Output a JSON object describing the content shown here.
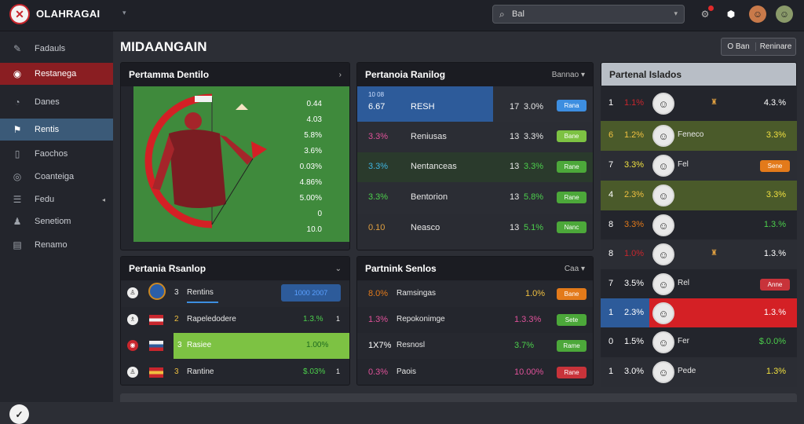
{
  "app": {
    "brand": "OLAHRAGAI",
    "brand_sub": "",
    "page_title": "MIDAANGAIN"
  },
  "search": {
    "text": "Bal",
    "icon": "search-icon"
  },
  "header": {
    "btn1": "O",
    "btn2": "Ban",
    "btn3": "Reninare"
  },
  "sidebar": {
    "items": [
      {
        "label": "Fadauls",
        "icon": "pen-icon"
      },
      {
        "label": "Restanega",
        "icon": "ball-icon"
      },
      {
        "label": "Danes",
        "icon": "chart-icon"
      },
      {
        "label": "Rentis",
        "icon": "flag-icon"
      },
      {
        "label": "Faochos",
        "icon": "doc-icon"
      },
      {
        "label": "Coanteiga",
        "icon": "globe-icon"
      },
      {
        "label": "Fedu",
        "icon": "list-icon"
      },
      {
        "label": "Senetiom",
        "icon": "team-icon"
      },
      {
        "label": "Renamo",
        "icon": "page-icon"
      }
    ]
  },
  "card1": {
    "title": "Pertamma Dentilo",
    "stats": [
      "0.44",
      "4.03",
      "5.8%",
      "3.6%",
      "0.03%",
      "4.86%",
      "5.00%",
      "0",
      "10.0"
    ]
  },
  "card2": {
    "title": "Pertanoia Ranilog",
    "right": "Bannao",
    "rows": [
      {
        "a": "6.67",
        "sub": "10 08",
        "name": "RESH",
        "n": "17",
        "p": "3.0%",
        "btn": "Rana",
        "btncolor": "#3d8ee0"
      },
      {
        "a": "3.3%",
        "name": "Reniusas",
        "n": "13",
        "p": "3.3%",
        "btn": "Bane",
        "btncolor": "#7dc243"
      },
      {
        "a": "3.3%",
        "name": "Nentanceas",
        "n": "13",
        "p": "3.3%",
        "btn": "Rane",
        "btncolor": "#4ca83a"
      },
      {
        "a": "3.3%",
        "name": "Bentorion",
        "n": "13",
        "p": "5.8%",
        "btn": "Rane",
        "btncolor": "#4ca83a"
      },
      {
        "a": "0.10",
        "name": "Neasco",
        "n": "13",
        "p": "5.1%",
        "btn": "Nanc",
        "btncolor": "#4ca83a"
      }
    ]
  },
  "card3": {
    "title": "Partenal Islados",
    "rows": [
      {
        "a": "1",
        "b": "1.1%",
        "c": "",
        "p": "4.3.%"
      },
      {
        "a": "6",
        "b": "1.2%",
        "c": "Feneco",
        "p": "3.3%"
      },
      {
        "a": "7",
        "b": "3.3%",
        "c": "Fel",
        "p": "Sene"
      },
      {
        "a": "4",
        "b": "2.3%",
        "c": "",
        "p": "3.3%"
      },
      {
        "a": "8",
        "b": "3.3%",
        "c": "",
        "p": "1.3.%"
      },
      {
        "a": "8",
        "b": "1.0%",
        "c": "",
        "p": "1.3.%"
      },
      {
        "a": "7",
        "b": "3.5%",
        "c": "Rel",
        "p": "Anne"
      },
      {
        "a": "1",
        "b": "2.3%",
        "c": "",
        "p": "1.3.%"
      },
      {
        "a": "0",
        "b": "1.5%",
        "c": "Fer",
        "p": "$.0.0%"
      },
      {
        "a": "1",
        "b": "3.0%",
        "c": "Pede",
        "p": "1.3%"
      }
    ]
  },
  "card4": {
    "title": "Pertania Rsanlop",
    "rows": [
      {
        "name": "Rentins",
        "value": "1000 2007",
        "extra": ""
      },
      {
        "name": "Rapeledodere",
        "value": "1.3.%",
        "extra": "1"
      },
      {
        "name": "Rasiee",
        "value": "1.00%",
        "extra": ""
      },
      {
        "name": "Rantine",
        "value": "$.03%",
        "extra": "1"
      }
    ]
  },
  "card5": {
    "title": "Partnink Senlos",
    "right": "Caa",
    "rows": [
      {
        "a": "8.0%",
        "name": "Ramsingas",
        "p": "1.0%",
        "btn": "Bane",
        "btncolor": "#e37a1a"
      },
      {
        "a": "1.3%",
        "name": "Repokonimge",
        "p": "1.3.3%",
        "btn": "Sete",
        "btncolor": "#4ca83a"
      },
      {
        "a": "1X7%",
        "name": "Resnosl",
        "p": "3.7%",
        "btn": "Rame",
        "btncolor": "#4ca83a"
      },
      {
        "a": "0.3%",
        "name": "Paois",
        "p": "10.00%",
        "btn": "Rane",
        "btncolor": "#c8333a"
      }
    ]
  }
}
